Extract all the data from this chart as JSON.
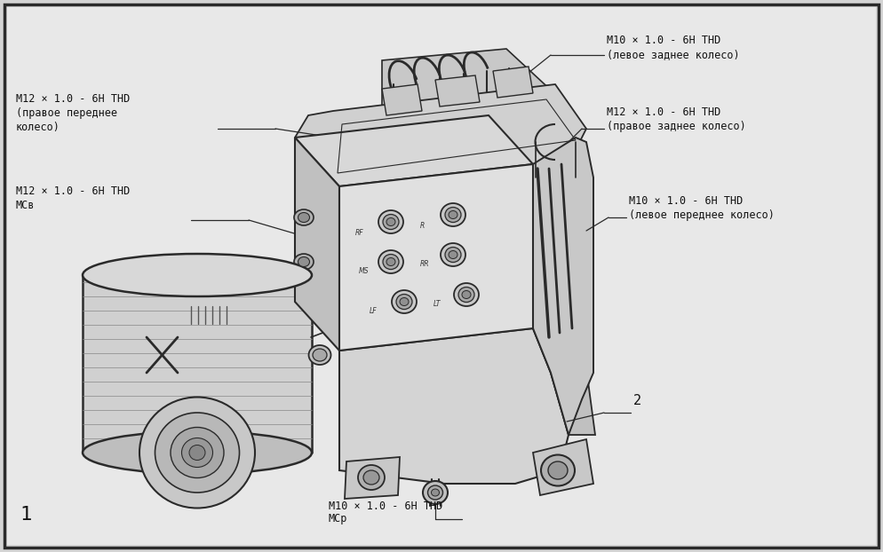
{
  "bg_color": "#d4d4d4",
  "inner_bg": "#e8e8e8",
  "border_color": "#1a1a1a",
  "line_color": "#2a2a2a",
  "text_color": "#111111",
  "fig_width": 9.94,
  "fig_height": 6.22,
  "dpi": 100,
  "labels": {
    "top_right_1_line1": "M10 × 1.0 - 6H THD",
    "top_right_1_line2": "(левое заднее колесо)",
    "top_right_2_line1": "M12 × 1.0 - 6H THD",
    "top_right_2_line2": "(правое заднее колесо)",
    "mid_right_line1": "M10 × 1.0 - 6H THD",
    "mid_right_line2": "(левое переднее колесо)",
    "left_top_line1": "M12 × 1.0 - 6H THD",
    "left_top_line2": "(правое переднее",
    "left_top_line3": "колесо)",
    "left_mid_line1": "M12 × 1.0 - 6H THD",
    "left_mid_line2": "MCв",
    "bottom_line1": "M10 × 1.0 - 6H THD",
    "bottom_line2": "MCр",
    "label_1": "1",
    "label_2": "2"
  },
  "font_size": 8.5,
  "font_family": "DejaVu Sans Mono"
}
